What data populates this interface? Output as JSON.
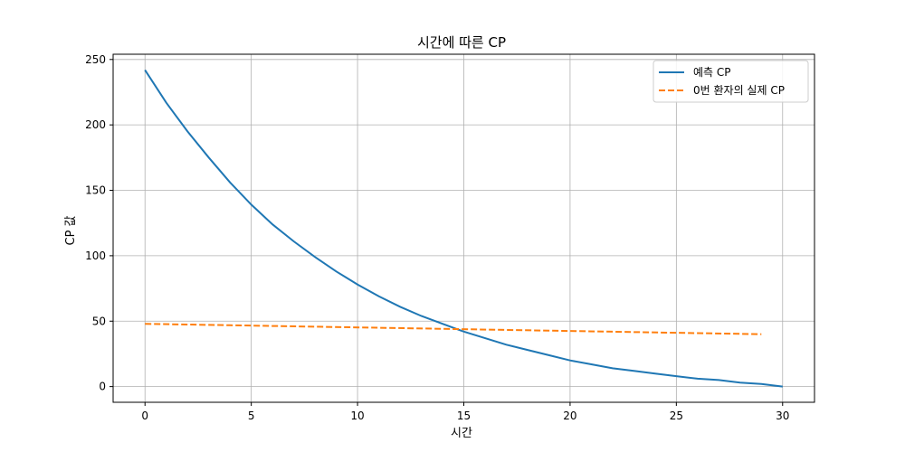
{
  "chart_data": {
    "type": "line",
    "title": "시간에 따른 CP",
    "xlabel": "시간",
    "ylabel": "CP 값",
    "xlim": [
      -1.5,
      31.5
    ],
    "ylim": [
      -12,
      254
    ],
    "xticks": [
      0,
      5,
      10,
      15,
      20,
      25,
      30
    ],
    "yticks": [
      0,
      50,
      100,
      150,
      200,
      250
    ],
    "grid": true,
    "legend_position": "top-right",
    "series": [
      {
        "name": "예측 CP",
        "color": "#1f77b4",
        "style": "solid",
        "x": [
          0,
          1,
          2,
          3,
          4,
          5,
          6,
          7,
          8,
          9,
          10,
          11,
          12,
          13,
          14,
          15,
          16,
          17,
          18,
          19,
          20,
          21,
          22,
          23,
          24,
          25,
          26,
          27,
          28,
          29,
          30
        ],
        "y": [
          242,
          217,
          195,
          175,
          156,
          139,
          124,
          111,
          99,
          88,
          78,
          69,
          61,
          54,
          48,
          42,
          37,
          32,
          28,
          24,
          20,
          17,
          14,
          12,
          10,
          8,
          6,
          5,
          3,
          2,
          0
        ]
      },
      {
        "name": "0번 환자의 실제 CP",
        "color": "#ff7f0e",
        "style": "dashed",
        "x": [
          0,
          29
        ],
        "y": [
          48,
          40
        ]
      }
    ]
  }
}
